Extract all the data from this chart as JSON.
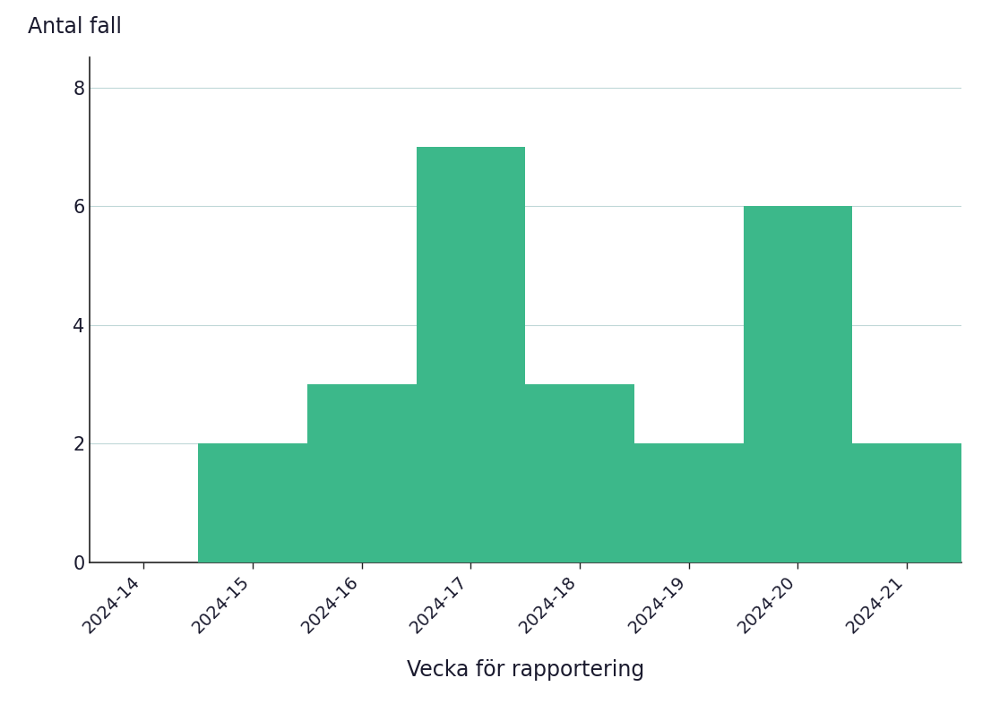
{
  "categories": [
    "2024-14",
    "2024-15",
    "2024-16",
    "2024-17",
    "2024-18",
    "2024-19",
    "2024-20",
    "2024-21"
  ],
  "values": [
    0,
    2,
    3,
    7,
    3,
    2,
    6,
    2
  ],
  "bar_color": "#3cb88a",
  "ylabel": "Antal fall",
  "xlabel": "Vecka för rapportering",
  "ylim": [
    0,
    8.5
  ],
  "yticks": [
    0,
    2,
    4,
    6,
    8
  ],
  "background_color": "#ffffff",
  "bar_width": 1.0,
  "grid_color": "#c0d8d8",
  "grid_linewidth": 0.8,
  "ylabel_fontsize": 17,
  "xlabel_fontsize": 17,
  "tick_fontsize": 14,
  "text_color": "#1a1a2e"
}
